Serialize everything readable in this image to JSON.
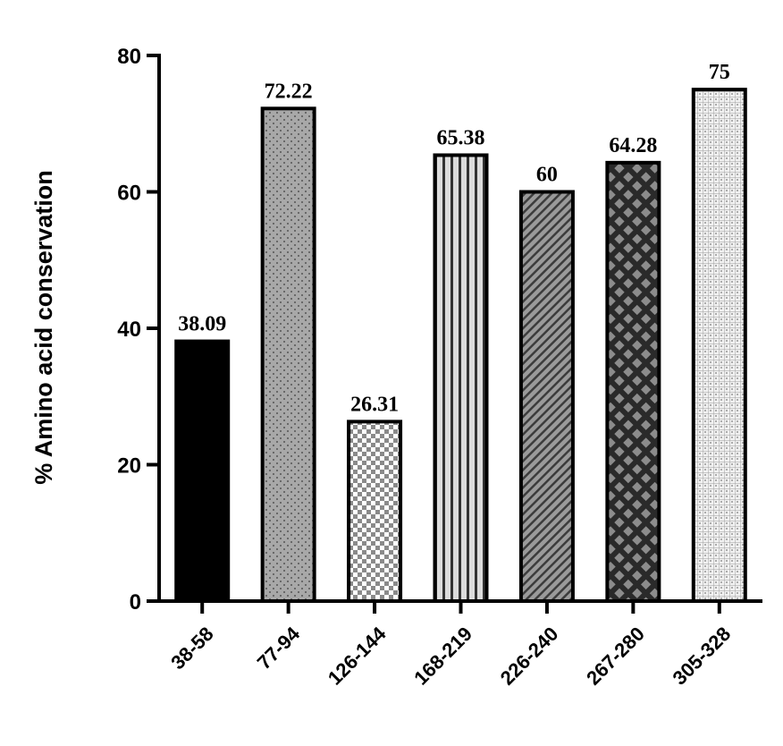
{
  "chart_data": {
    "type": "bar",
    "title": "",
    "xlabel": "",
    "ylabel": "% Amino acid conservation",
    "ylim": [
      0,
      80
    ],
    "yticks": [
      0,
      20,
      40,
      60,
      80
    ],
    "grid": false,
    "categories": [
      "38-58",
      "77-94",
      "126-144",
      "168-219",
      "226-240",
      "267-280",
      "305-328"
    ],
    "values": [
      38.09,
      72.22,
      26.31,
      65.38,
      60,
      64.28,
      75
    ],
    "value_labels": [
      "38.09",
      "72.22",
      "26.31",
      "65.38",
      "60",
      "64.28",
      "75"
    ],
    "bar_fills": [
      "solid-black",
      "dots-gray",
      "checker",
      "vertical-stripes",
      "diagonal-hatch",
      "diamond-lattice",
      "fine-grid"
    ]
  }
}
